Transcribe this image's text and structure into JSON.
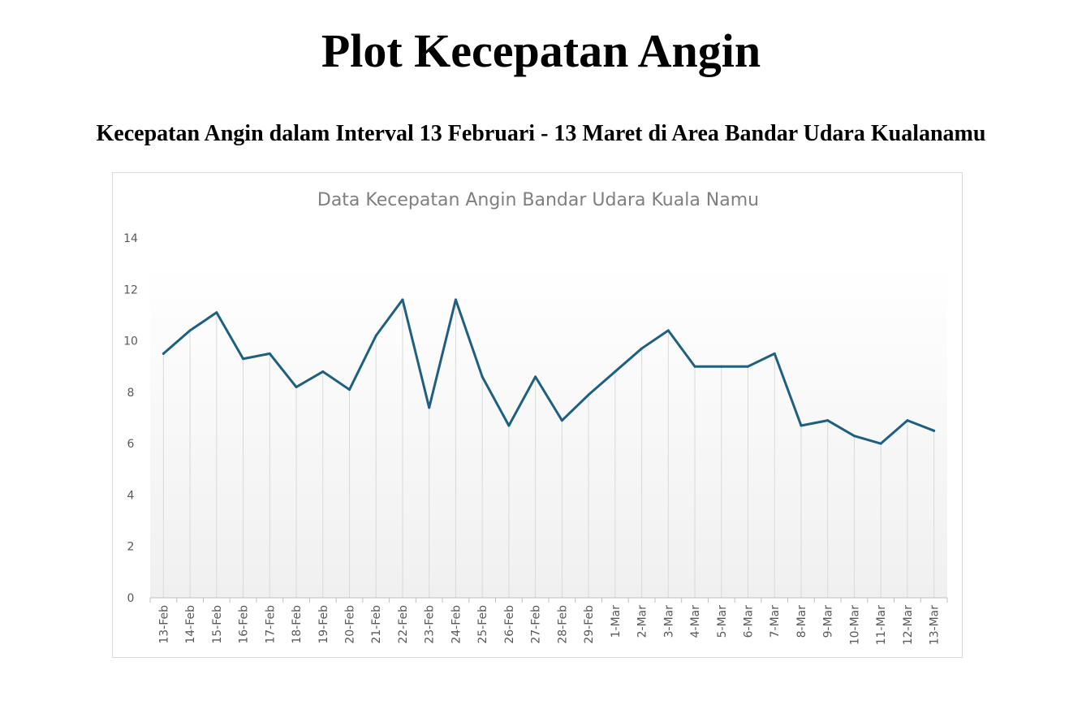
{
  "page": {
    "title": "Plot Kecepatan Angin",
    "subtitle": "Kecepatan Angin dalam Interval 13 Februari - 13 Maret di Area Bandar Udara Kualanamu"
  },
  "colors": {
    "line": "#1f5f7f",
    "grid": "#d9d9d9",
    "title": "#7f7f7f",
    "tick": "#595959"
  },
  "chart_data": {
    "type": "line",
    "title": "Data Kecepatan Angin Bandar Udara Kuala Namu",
    "xlabel": "",
    "ylabel": "",
    "ylim": [
      0,
      14
    ],
    "yticks": [
      0,
      2,
      4,
      6,
      8,
      10,
      12,
      14
    ],
    "grid": "vertical",
    "legend": "none",
    "categories": [
      "13-Feb",
      "14-Feb",
      "15-Feb",
      "16-Feb",
      "17-Feb",
      "18-Feb",
      "19-Feb",
      "20-Feb",
      "21-Feb",
      "22-Feb",
      "23-Feb",
      "24-Feb",
      "25-Feb",
      "26-Feb",
      "27-Feb",
      "28-Feb",
      "29-Feb",
      "1-Mar",
      "2-Mar",
      "3-Mar",
      "4-Mar",
      "5-Mar",
      "6-Mar",
      "7-Mar",
      "8-Mar",
      "9-Mar",
      "10-Mar",
      "11-Mar",
      "12-Mar",
      "13-Mar"
    ],
    "values": [
      9.5,
      10.4,
      11.1,
      9.3,
      9.5,
      8.2,
      8.8,
      8.1,
      10.2,
      11.6,
      7.4,
      11.6,
      8.6,
      6.7,
      8.6,
      6.9,
      7.9,
      8.8,
      9.7,
      10.4,
      9.0,
      9.0,
      9.0,
      9.5,
      6.7,
      6.9,
      6.3,
      6.0,
      6.9,
      6.5
    ]
  }
}
